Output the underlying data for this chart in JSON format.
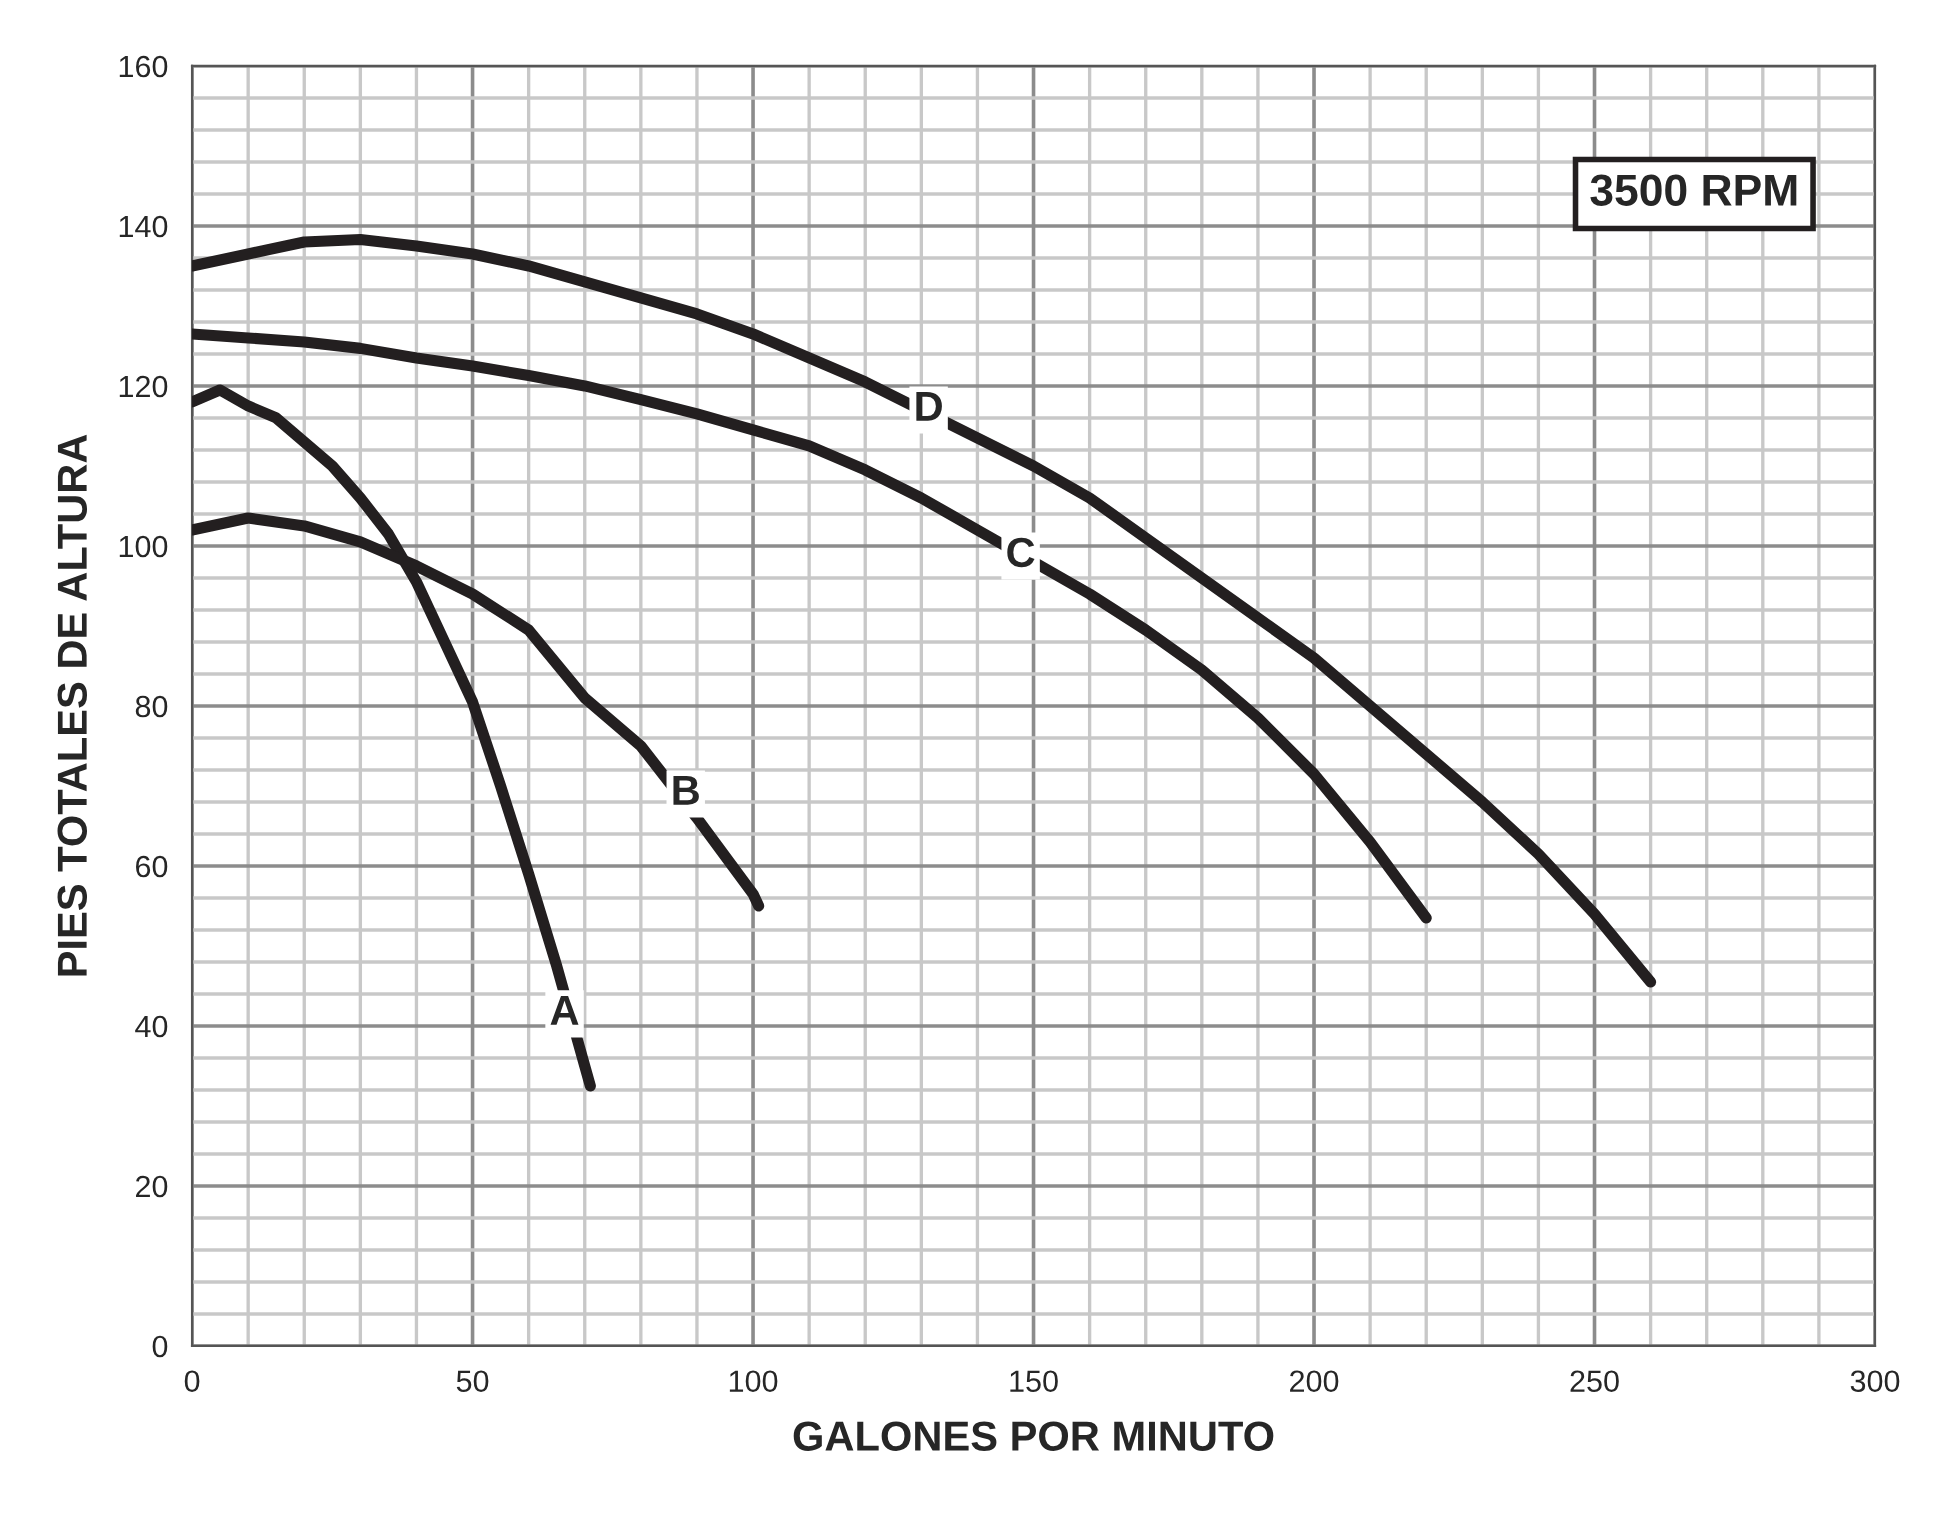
{
  "chart_data": {
    "type": "line",
    "xlabel": "GALONES POR MINUTO",
    "ylabel": "PIES TOTALES DE ALTURA",
    "series": [
      {
        "color": "#231f20",
        "x": [
          0,
          5,
          10,
          15,
          20,
          25,
          30,
          35,
          40,
          45,
          50,
          55,
          60,
          65,
          70,
          71
        ],
        "values": [
          118,
          119.5,
          117.5,
          116,
          113,
          110,
          106,
          101.5,
          95.5,
          88,
          80.5,
          70,
          59,
          47.5,
          35,
          32.5
        ]
      },
      {
        "color": "#231f20",
        "x": [
          0,
          10,
          20,
          30,
          40,
          50,
          60,
          70,
          80,
          90,
          100,
          101
        ],
        "values": [
          102,
          103.5,
          102.5,
          100.5,
          97.5,
          94,
          89.5,
          81,
          75,
          66,
          56.5,
          55
        ]
      },
      {
        "color": "#231f20",
        "x": [
          0,
          10,
          20,
          30,
          40,
          50,
          60,
          70,
          80,
          90,
          100,
          110,
          120,
          130,
          140,
          160,
          170,
          180,
          190,
          200,
          210,
          220
        ],
        "values": [
          126.5,
          126,
          125.5,
          124.7,
          123.5,
          122.5,
          121.3,
          120,
          118.3,
          116.5,
          114.5,
          112.5,
          109.5,
          106,
          102,
          94,
          89.5,
          84.5,
          78.5,
          71.5,
          63,
          53.5
        ]
      },
      {
        "color": "#231f20",
        "x": [
          0,
          10,
          20,
          30,
          40,
          50,
          60,
          70,
          80,
          90,
          100,
          110,
          120,
          140,
          150,
          160,
          170,
          180,
          190,
          200,
          210,
          220,
          230,
          240,
          250,
          260
        ],
        "values": [
          135,
          136.5,
          138,
          138.3,
          137.5,
          136.5,
          135,
          133,
          131,
          129,
          126.5,
          123.5,
          120.5,
          113.5,
          110,
          106,
          101,
          96,
          91,
          86,
          80,
          74,
          68,
          61.5,
          54,
          45.5
        ]
      }
    ],
    "annotations": [
      {
        "text": "A",
        "x": 66.4,
        "y": 41.5
      },
      {
        "text": "B",
        "x": 88,
        "y": 69
      },
      {
        "text": "C",
        "x": 147.7,
        "y": 98.75
      },
      {
        "text": "D",
        "x": 131.3,
        "y": 117
      },
      "3500 RPM"
    ],
    "xlim": [
      0,
      300
    ],
    "ylim": [
      0,
      160
    ],
    "xticks": [
      0,
      50,
      100,
      150,
      200,
      250,
      300
    ],
    "yticks": [
      0,
      20,
      40,
      60,
      80,
      100,
      120,
      140,
      160
    ],
    "grid": true,
    "line_style": "solid",
    "marker": "none"
  }
}
